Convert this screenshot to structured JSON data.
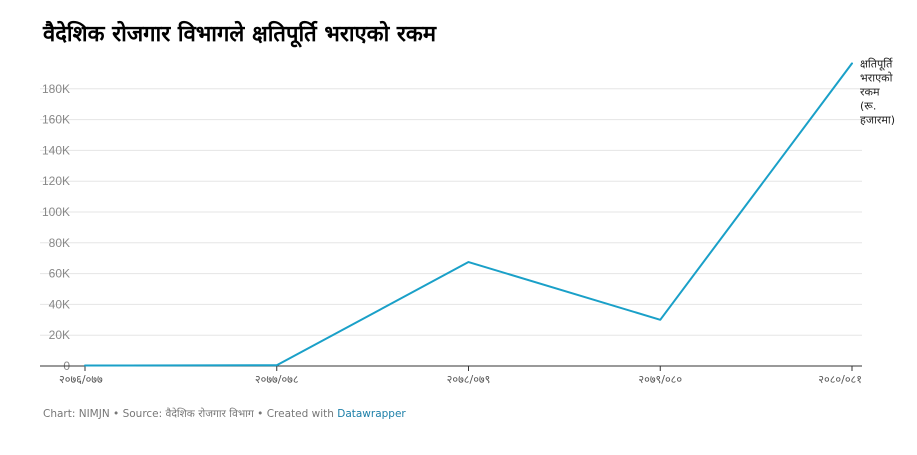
{
  "title": "वैदेशिक रोजगार विभागले क्षतिपूर्ति भराएको रकम",
  "footer": {
    "chart_credit": "Chart: NIMJN",
    "separator": " • ",
    "source": "Source: वैदेशिक रोजगार विभाग",
    "created_with": "Created with ",
    "tool": "Datawrapper"
  },
  "colors": {
    "line": "#1aa0c8",
    "grid": "#e5e5e5",
    "axis": "#333333"
  },
  "chart_data": {
    "type": "line",
    "title": "वैदेशिक रोजगार विभागले क्षतिपूर्ति भराएको रकम",
    "categories": [
      "२०७६/०७७",
      "२०७७/०७८",
      "२०७८/०७९",
      "२०७९/०८०",
      "२०८०/०८१"
    ],
    "series": [
      {
        "name": "क्षतिपूर्ति भराएको रकम (रू. हजारमा)",
        "name_lines": [
          "क्षतिपूर्ति",
          "भराएको",
          "रकम",
          "(रू.",
          "हजारमा)"
        ],
        "values": [
          300,
          500,
          67500,
          30000,
          196500
        ]
      }
    ],
    "ylim": [
      0,
      200000
    ],
    "yticks": [
      0,
      20000,
      40000,
      60000,
      80000,
      100000,
      120000,
      140000,
      160000,
      180000
    ],
    "ytick_labels": [
      "0",
      "20K",
      "40K",
      "60K",
      "80K",
      "100K",
      "120K",
      "140K",
      "160K",
      "180K"
    ],
    "grid": true,
    "legend": "inline label at line end"
  }
}
